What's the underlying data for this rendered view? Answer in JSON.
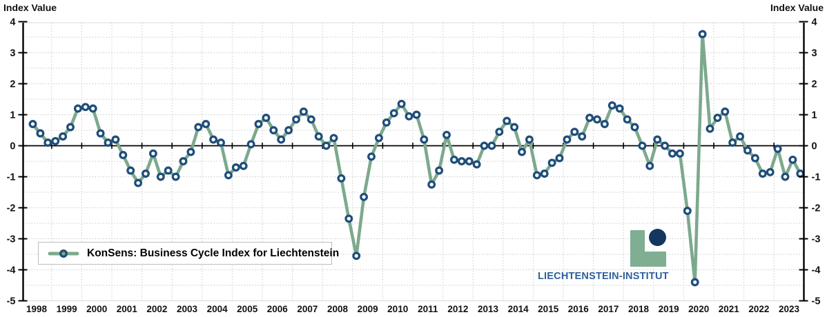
{
  "titles": {
    "left_axis_title": "Index Value",
    "right_axis_title": "Index Value"
  },
  "legend": {
    "label": "KonSens: Business Cycle Index for Liechtenstein"
  },
  "logo": {
    "text": "LIECHTENSTEIN-INSTITUT"
  },
  "colors": {
    "line_green": "#7CA98D",
    "marker_navy": "#1F4E79",
    "logo_green": "#7FAE93",
    "logo_navy": "#14365F",
    "logo_text_blue": "#2E5F9E",
    "grid_gray": "#c8c8c8",
    "axis_black": "#000000"
  },
  "chart_data": {
    "type": "line",
    "title": "",
    "ylabel": "Index Value",
    "ylabel_right": "Index Value",
    "ylim": [
      -5,
      4
    ],
    "y_ticks": [
      4,
      3,
      2,
      1,
      0,
      -1,
      -2,
      -3,
      -4,
      -5
    ],
    "grid": true,
    "legend_position": "bottom-left",
    "frequency": "quarterly",
    "start_period": "1998-Q1",
    "end_period": "2023-Q3",
    "x_tick_labels": [
      "1998",
      "1999",
      "2000",
      "2001",
      "2002",
      "2003",
      "2004",
      "2005",
      "2006",
      "2007",
      "2008",
      "2009",
      "2010",
      "2011",
      "2012",
      "2013",
      "2014",
      "2015",
      "2016",
      "2017",
      "2018",
      "2019",
      "2020",
      "2021",
      "2022",
      "2023"
    ],
    "series": [
      {
        "name": "KonSens: Business Cycle Index for Liechtenstein",
        "values": [
          0.7,
          0.4,
          0.1,
          0.15,
          0.3,
          0.6,
          1.2,
          1.25,
          1.2,
          0.4,
          0.1,
          0.2,
          -0.3,
          -0.8,
          -1.2,
          -0.9,
          -0.25,
          -1.0,
          -0.8,
          -1.0,
          -0.5,
          -0.2,
          0.6,
          0.7,
          0.2,
          0.1,
          -0.95,
          -0.7,
          -0.65,
          0.05,
          0.7,
          0.9,
          0.5,
          0.2,
          0.5,
          0.85,
          1.1,
          0.85,
          0.3,
          0.0,
          0.25,
          -1.05,
          -2.35,
          -3.55,
          -1.65,
          -0.35,
          0.25,
          0.75,
          1.05,
          1.35,
          0.95,
          1.0,
          0.2,
          -1.25,
          -0.8,
          0.35,
          -0.45,
          -0.5,
          -0.5,
          -0.6,
          0.0,
          0.0,
          0.45,
          0.8,
          0.6,
          -0.2,
          0.2,
          -0.95,
          -0.9,
          -0.55,
          -0.4,
          0.2,
          0.45,
          0.3,
          0.9,
          0.85,
          0.7,
          1.3,
          1.2,
          0.85,
          0.6,
          0.0,
          -0.65,
          0.2,
          0.0,
          -0.25,
          -0.25,
          -2.1,
          -4.4,
          3.6,
          0.55,
          0.9,
          1.1,
          0.1,
          0.3,
          -0.15,
          -0.4,
          -0.9,
          -0.85,
          -0.1,
          -1.0,
          -0.45,
          -0.9
        ]
      }
    ]
  }
}
